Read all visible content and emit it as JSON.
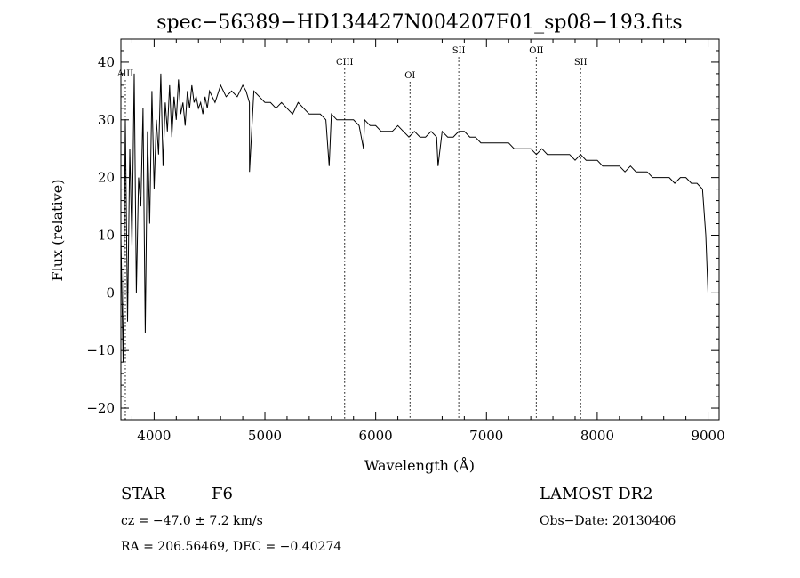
{
  "chart_data": {
    "type": "line",
    "title": "spec−56389−HD134427N004207F01_sp08−193.fits",
    "xlabel": "Wavelength (Å)",
    "ylabel": "Flux (relative)",
    "xlim": [
      3700,
      9100
    ],
    "ylim": [
      -22,
      44
    ],
    "xticks": [
      4000,
      5000,
      6000,
      7000,
      8000,
      9000
    ],
    "xtick_labels": [
      "4000",
      "5000",
      "6000",
      "7000",
      "8000",
      "9000"
    ],
    "yticks": [
      -20,
      -10,
      0,
      10,
      20,
      30,
      40
    ],
    "ytick_labels": [
      "−20",
      "−10",
      "0",
      "10",
      "20",
      "30",
      "40"
    ],
    "grid": false,
    "series": [
      {
        "x": [
          3700,
          3720,
          3740,
          3760,
          3780,
          3800,
          3820,
          3840,
          3860,
          3880,
          3900,
          3920,
          3940,
          3960,
          3980,
          4000,
          4020,
          4040,
          4060,
          4080,
          4100,
          4120,
          4140,
          4160,
          4180,
          4200,
          4220,
          4240,
          4260,
          4280,
          4300,
          4320,
          4340,
          4360,
          4380,
          4400,
          4420,
          4440,
          4460,
          4480,
          4500,
          4550,
          4600,
          4650,
          4700,
          4750,
          4800,
          4830,
          4860,
          4861,
          4900,
          4950,
          5000,
          5050,
          5100,
          5150,
          5200,
          5250,
          5300,
          5350,
          5400,
          5450,
          5500,
          5550,
          5580,
          5600,
          5650,
          5700,
          5750,
          5800,
          5850,
          5890,
          5900,
          5950,
          6000,
          6050,
          6100,
          6150,
          6200,
          6250,
          6300,
          6350,
          6400,
          6450,
          6500,
          6550,
          6563,
          6600,
          6650,
          6700,
          6750,
          6800,
          6850,
          6900,
          6950,
          7000,
          7050,
          7100,
          7150,
          7200,
          7250,
          7300,
          7350,
          7400,
          7450,
          7500,
          7550,
          7600,
          7650,
          7700,
          7750,
          7800,
          7850,
          7900,
          7950,
          8000,
          8050,
          8100,
          8150,
          8200,
          8250,
          8300,
          8350,
          8400,
          8450,
          8500,
          8550,
          8600,
          8650,
          8700,
          8750,
          8800,
          8850,
          8900,
          8950,
          8980,
          9000
        ],
        "y": [
          10,
          -12,
          30,
          -5,
          25,
          8,
          38,
          0,
          20,
          15,
          32,
          -7,
          28,
          12,
          35,
          18,
          30,
          24,
          38,
          22,
          33,
          28,
          36,
          27,
          34,
          30,
          37,
          31,
          33,
          29,
          35,
          32,
          36,
          33,
          34,
          32,
          33,
          31,
          34,
          32,
          35,
          33,
          36,
          34,
          35,
          34,
          36,
          35,
          33,
          21,
          35,
          34,
          33,
          33,
          32,
          33,
          32,
          31,
          33,
          32,
          31,
          31,
          31,
          30,
          22,
          31,
          30,
          30,
          30,
          30,
          29,
          25,
          30,
          29,
          29,
          28,
          28,
          28,
          29,
          28,
          27,
          28,
          27,
          27,
          28,
          27,
          22,
          28,
          27,
          27,
          28,
          28,
          27,
          27,
          26,
          26,
          26,
          26,
          26,
          26,
          25,
          25,
          25,
          25,
          24,
          25,
          24,
          24,
          24,
          24,
          24,
          23,
          24,
          23,
          23,
          23,
          22,
          22,
          22,
          22,
          21,
          22,
          21,
          21,
          21,
          20,
          20,
          20,
          20,
          19,
          20,
          20,
          19,
          19,
          18,
          10,
          0
        ]
      }
    ],
    "annotations": [
      "AlII",
      "CIII",
      "OI",
      "SII",
      "OII",
      "SII"
    ],
    "annotation_x": [
      3740,
      5720,
      6310,
      6750,
      7450,
      7850
    ],
    "annotation_y": [
      37.5,
      39.5,
      37.2,
      41.5,
      41.5,
      39.5
    ]
  },
  "info": {
    "object_class": "STAR",
    "subclass": "F6",
    "redshift_line": "cz = −47.0 ± 7.2 km/s",
    "coords_line": "RA = 206.56469, DEC =  −0.40274",
    "survey": "LAMOST DR2",
    "obs_date": "Obs−Date: 20130406"
  }
}
